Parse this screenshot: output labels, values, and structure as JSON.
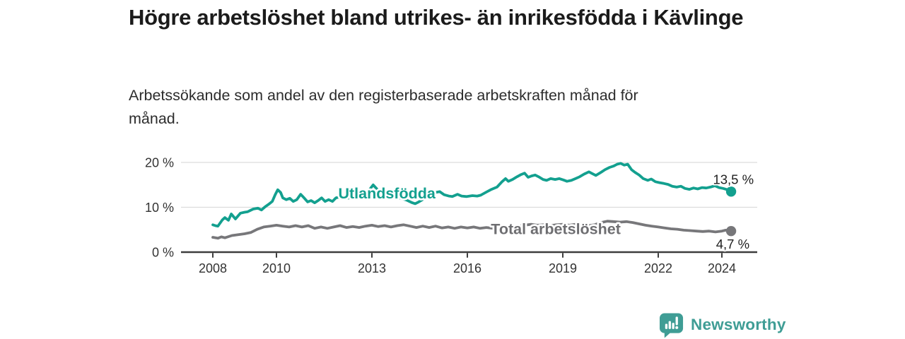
{
  "page": {
    "title": "Högre arbetslöshet bland utrikes- än inrikesfödda i Kävlinge",
    "subtitle": "Arbetssökande som andel av den registerbaserade arbetskraften månad för månad."
  },
  "branding": {
    "wordmark": "Newsworthy",
    "logo_icon": "newsworthy-speech-bubble-bar-chart-icon",
    "color": "#3f9d95"
  },
  "colors": {
    "foreign_born_line": "#13a08f",
    "total_line": "#77777a",
    "total_label": "#6e6e71",
    "axis": "#3d3d3d",
    "tick_label": "#333333",
    "gridline": "#dcdcdc",
    "value_label": "#1f1f1f",
    "background": "#ffffff"
  },
  "chart_data": {
    "type": "line",
    "title": "Högre arbetslöshet bland utrikes- än inrikesfödda i Kävlinge",
    "subtitle": "Arbetssökande som andel av den registerbaserade arbetskraften månad för månad.",
    "legend": "inline-series-labels",
    "grid": "horizontal-only",
    "x_axis": {
      "range": [
        2007.0,
        2025.2
      ],
      "ticks": [
        2008,
        2010,
        2013,
        2016,
        2019,
        2022,
        2024
      ],
      "tick_labels": [
        "2008",
        "2010",
        "2013",
        "2016",
        "2019",
        "2022",
        "2024"
      ]
    },
    "y_axis": {
      "range": [
        0,
        20.6
      ],
      "ticks": [
        0,
        10,
        20
      ],
      "tick_labels": [
        "0 %",
        "10 %",
        "20 %"
      ],
      "unit": "%"
    },
    "series": [
      {
        "id": "utlandsfodda",
        "name": "Utlandsfödda",
        "color": "#13a08f",
        "label_color": "#13a08f",
        "label_anchor": {
          "t": 2013.47,
          "v": 12.0
        },
        "end_value": 13.5,
        "end_label": "13,5 %",
        "points": [
          [
            2008.0,
            6.1
          ],
          [
            2008.08,
            5.9
          ],
          [
            2008.16,
            5.8
          ],
          [
            2008.3,
            7.2
          ],
          [
            2008.38,
            7.7
          ],
          [
            2008.49,
            7.1
          ],
          [
            2008.58,
            8.5
          ],
          [
            2008.71,
            7.4
          ],
          [
            2008.87,
            8.7
          ],
          [
            2009.0,
            8.9
          ],
          [
            2009.09,
            9.0
          ],
          [
            2009.27,
            9.6
          ],
          [
            2009.42,
            9.8
          ],
          [
            2009.53,
            9.4
          ],
          [
            2009.64,
            10.1
          ],
          [
            2009.76,
            10.7
          ],
          [
            2009.87,
            11.3
          ],
          [
            2009.96,
            12.8
          ],
          [
            2010.04,
            13.9
          ],
          [
            2010.13,
            13.3
          ],
          [
            2010.2,
            12.1
          ],
          [
            2010.31,
            11.7
          ],
          [
            2010.42,
            12.0
          ],
          [
            2010.53,
            11.3
          ],
          [
            2010.64,
            11.7
          ],
          [
            2010.76,
            12.9
          ],
          [
            2010.87,
            12.1
          ],
          [
            2010.98,
            11.2
          ],
          [
            2011.09,
            11.5
          ],
          [
            2011.2,
            11.0
          ],
          [
            2011.31,
            11.5
          ],
          [
            2011.42,
            12.1
          ],
          [
            2011.53,
            11.3
          ],
          [
            2011.64,
            11.7
          ],
          [
            2011.76,
            11.3
          ],
          [
            2011.87,
            12.1
          ],
          [
            2011.98,
            12.3
          ],
          [
            2012.2,
            12.0
          ],
          [
            2012.42,
            12.2
          ],
          [
            2012.64,
            12.5
          ],
          [
            2012.87,
            13.4
          ],
          [
            2013.04,
            15.0
          ],
          [
            2013.22,
            13.6
          ],
          [
            2013.42,
            12.8
          ],
          [
            2013.64,
            12.4
          ],
          [
            2013.87,
            12.1
          ],
          [
            2014.09,
            11.6
          ],
          [
            2014.27,
            11.0
          ],
          [
            2014.36,
            10.8
          ],
          [
            2014.47,
            11.2
          ],
          [
            2014.64,
            11.9
          ],
          [
            2014.82,
            12.5
          ],
          [
            2015.0,
            13.3
          ],
          [
            2015.13,
            13.5
          ],
          [
            2015.27,
            12.8
          ],
          [
            2015.42,
            12.5
          ],
          [
            2015.53,
            12.4
          ],
          [
            2015.69,
            12.9
          ],
          [
            2015.82,
            12.5
          ],
          [
            2015.98,
            12.4
          ],
          [
            2016.16,
            12.6
          ],
          [
            2016.31,
            12.5
          ],
          [
            2016.42,
            12.7
          ],
          [
            2016.6,
            13.4
          ],
          [
            2016.76,
            14.0
          ],
          [
            2016.93,
            14.5
          ],
          [
            2017.09,
            15.7
          ],
          [
            2017.2,
            16.4
          ],
          [
            2017.29,
            15.8
          ],
          [
            2017.42,
            16.2
          ],
          [
            2017.56,
            16.8
          ],
          [
            2017.69,
            17.3
          ],
          [
            2017.8,
            17.6
          ],
          [
            2017.91,
            16.7
          ],
          [
            2018.02,
            17.0
          ],
          [
            2018.13,
            17.2
          ],
          [
            2018.24,
            16.8
          ],
          [
            2018.38,
            16.2
          ],
          [
            2018.49,
            16.0
          ],
          [
            2018.62,
            16.4
          ],
          [
            2018.76,
            16.2
          ],
          [
            2018.89,
            16.4
          ],
          [
            2019.02,
            16.1
          ],
          [
            2019.13,
            15.8
          ],
          [
            2019.27,
            16.0
          ],
          [
            2019.4,
            16.4
          ],
          [
            2019.53,
            16.8
          ],
          [
            2019.67,
            17.4
          ],
          [
            2019.82,
            17.9
          ],
          [
            2019.93,
            17.5
          ],
          [
            2020.04,
            17.1
          ],
          [
            2020.2,
            17.8
          ],
          [
            2020.33,
            18.4
          ],
          [
            2020.47,
            18.9
          ],
          [
            2020.6,
            19.2
          ],
          [
            2020.71,
            19.6
          ],
          [
            2020.82,
            19.8
          ],
          [
            2020.93,
            19.4
          ],
          [
            2021.04,
            19.6
          ],
          [
            2021.16,
            18.4
          ],
          [
            2021.27,
            17.8
          ],
          [
            2021.4,
            17.2
          ],
          [
            2021.53,
            16.4
          ],
          [
            2021.67,
            16.0
          ],
          [
            2021.78,
            16.3
          ],
          [
            2021.91,
            15.7
          ],
          [
            2022.04,
            15.5
          ],
          [
            2022.18,
            15.3
          ],
          [
            2022.31,
            15.1
          ],
          [
            2022.44,
            14.7
          ],
          [
            2022.58,
            14.5
          ],
          [
            2022.71,
            14.7
          ],
          [
            2022.84,
            14.2
          ],
          [
            2022.98,
            14.0
          ],
          [
            2023.11,
            14.3
          ],
          [
            2023.24,
            14.1
          ],
          [
            2023.38,
            14.4
          ],
          [
            2023.51,
            14.3
          ],
          [
            2023.64,
            14.5
          ],
          [
            2023.78,
            14.8
          ],
          [
            2023.91,
            14.4
          ],
          [
            2024.04,
            14.2
          ],
          [
            2024.18,
            13.9
          ],
          [
            2024.29,
            13.5
          ]
        ]
      },
      {
        "id": "total",
        "name": "Total arbetslöshet",
        "color": "#77777a",
        "label_color": "#6e6e71",
        "label_anchor": {
          "t": 2018.78,
          "v": 4.05
        },
        "end_value": 4.7,
        "end_label": "4,7 %",
        "points": [
          [
            2008.0,
            3.3
          ],
          [
            2008.16,
            3.1
          ],
          [
            2008.27,
            3.4
          ],
          [
            2008.38,
            3.2
          ],
          [
            2008.6,
            3.7
          ],
          [
            2008.8,
            3.9
          ],
          [
            2009.0,
            4.1
          ],
          [
            2009.2,
            4.4
          ],
          [
            2009.4,
            5.1
          ],
          [
            2009.6,
            5.6
          ],
          [
            2009.8,
            5.8
          ],
          [
            2010.0,
            6.0
          ],
          [
            2010.2,
            5.8
          ],
          [
            2010.4,
            5.6
          ],
          [
            2010.6,
            5.9
          ],
          [
            2010.8,
            5.6
          ],
          [
            2011.0,
            5.9
          ],
          [
            2011.2,
            5.3
          ],
          [
            2011.4,
            5.6
          ],
          [
            2011.6,
            5.3
          ],
          [
            2011.8,
            5.6
          ],
          [
            2012.0,
            5.9
          ],
          [
            2012.2,
            5.5
          ],
          [
            2012.4,
            5.7
          ],
          [
            2012.6,
            5.5
          ],
          [
            2012.8,
            5.8
          ],
          [
            2013.0,
            6.0
          ],
          [
            2013.2,
            5.7
          ],
          [
            2013.4,
            5.9
          ],
          [
            2013.6,
            5.6
          ],
          [
            2013.8,
            5.9
          ],
          [
            2014.0,
            6.1
          ],
          [
            2014.2,
            5.8
          ],
          [
            2014.4,
            5.5
          ],
          [
            2014.6,
            5.8
          ],
          [
            2014.8,
            5.5
          ],
          [
            2015.0,
            5.8
          ],
          [
            2015.2,
            5.4
          ],
          [
            2015.4,
            5.6
          ],
          [
            2015.6,
            5.3
          ],
          [
            2015.8,
            5.6
          ],
          [
            2016.0,
            5.4
          ],
          [
            2016.2,
            5.6
          ],
          [
            2016.4,
            5.3
          ],
          [
            2016.6,
            5.5
          ],
          [
            2016.8,
            5.3
          ],
          [
            2017.0,
            5.5
          ],
          [
            2017.2,
            5.7
          ],
          [
            2017.4,
            5.5
          ],
          [
            2017.6,
            5.8
          ],
          [
            2017.8,
            6.0
          ],
          [
            2018.0,
            6.2
          ],
          [
            2018.2,
            6.0
          ],
          [
            2018.4,
            6.1
          ],
          [
            2018.6,
            5.9
          ],
          [
            2018.8,
            6.1
          ],
          [
            2019.0,
            6.2
          ],
          [
            2019.2,
            6.0
          ],
          [
            2019.4,
            6.2
          ],
          [
            2019.6,
            6.0
          ],
          [
            2019.8,
            5.9
          ],
          [
            2020.0,
            6.1
          ],
          [
            2020.2,
            6.6
          ],
          [
            2020.4,
            6.9
          ],
          [
            2020.6,
            6.8
          ],
          [
            2020.8,
            6.7
          ],
          [
            2021.0,
            6.8
          ],
          [
            2021.2,
            6.6
          ],
          [
            2021.4,
            6.3
          ],
          [
            2021.6,
            6.0
          ],
          [
            2021.8,
            5.8
          ],
          [
            2022.0,
            5.6
          ],
          [
            2022.2,
            5.4
          ],
          [
            2022.4,
            5.2
          ],
          [
            2022.6,
            5.1
          ],
          [
            2022.8,
            4.9
          ],
          [
            2023.0,
            4.8
          ],
          [
            2023.2,
            4.7
          ],
          [
            2023.4,
            4.6
          ],
          [
            2023.6,
            4.7
          ],
          [
            2023.8,
            4.5
          ],
          [
            2024.0,
            4.7
          ],
          [
            2024.12,
            4.9
          ],
          [
            2024.29,
            4.7
          ]
        ]
      }
    ]
  }
}
